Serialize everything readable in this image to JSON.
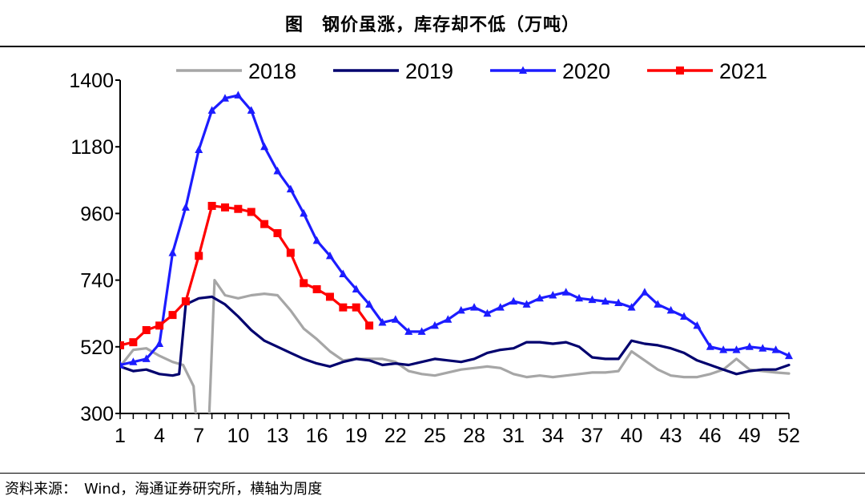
{
  "title": "图　钢价虽涨，库存却不低（万吨）",
  "source": "资料来源：　Wind，海通证券研究所，横轴为周度",
  "chart_data": {
    "type": "line",
    "title": "图　钢价虽涨，库存却不低（万吨）",
    "xlabel": "",
    "ylabel": "",
    "ylim": [
      300,
      1400
    ],
    "yticks": [
      300,
      520,
      740,
      960,
      1180,
      1400
    ],
    "xlim": [
      1,
      52
    ],
    "xticks": [
      1,
      4,
      7,
      10,
      13,
      16,
      19,
      22,
      25,
      28,
      31,
      34,
      37,
      40,
      43,
      46,
      49,
      52
    ],
    "legend_position": "top",
    "grid": false,
    "series": [
      {
        "name": "2018",
        "color": "#a6a6a6",
        "marker": "none",
        "x": [
          1,
          2,
          3,
          4,
          5,
          5.8,
          6.6,
          6.9,
          7.3,
          7.8,
          8.2,
          9,
          10,
          11,
          12,
          13,
          14,
          15,
          16,
          17,
          18,
          19,
          20,
          21,
          22,
          23,
          24,
          25,
          26,
          27,
          28,
          29,
          30,
          31,
          32,
          33,
          34,
          35,
          36,
          37,
          38,
          39,
          40,
          41,
          42,
          43,
          44,
          45,
          46,
          47,
          48,
          49,
          50,
          51,
          52
        ],
        "y": [
          455,
          510,
          515,
          490,
          470,
          460,
          390,
          220,
          200,
          300,
          740,
          690,
          680,
          690,
          695,
          690,
          640,
          580,
          545,
          505,
          475,
          480,
          480,
          480,
          470,
          440,
          430,
          425,
          435,
          445,
          450,
          455,
          450,
          430,
          420,
          425,
          420,
          425,
          430,
          435,
          435,
          440,
          505,
          475,
          445,
          425,
          420,
          420,
          430,
          445,
          480,
          445,
          440,
          435,
          432
        ]
      },
      {
        "name": "2019",
        "color": "#00006e",
        "marker": "none",
        "x": [
          1,
          2,
          3,
          4,
          5,
          5.5,
          6,
          7,
          8,
          9,
          10,
          11,
          12,
          13,
          14,
          15,
          16,
          17,
          18,
          19,
          20,
          21,
          22,
          23,
          24,
          25,
          26,
          27,
          28,
          29,
          30,
          31,
          32,
          33,
          34,
          35,
          36,
          37,
          38,
          39,
          40,
          41,
          42,
          43,
          44,
          45,
          46,
          47,
          48,
          49,
          50,
          51,
          52
        ],
        "y": [
          455,
          440,
          445,
          430,
          425,
          430,
          660,
          680,
          685,
          660,
          620,
          575,
          540,
          520,
          500,
          480,
          465,
          455,
          470,
          480,
          475,
          460,
          465,
          460,
          470,
          480,
          475,
          470,
          480,
          500,
          510,
          515,
          535,
          535,
          530,
          535,
          520,
          485,
          480,
          480,
          540,
          530,
          525,
          515,
          500,
          475,
          460,
          445,
          430,
          440,
          445,
          445,
          460
        ]
      },
      {
        "name": "2020",
        "color": "#1c1cff",
        "marker": "triangle",
        "x": [
          1,
          2,
          3,
          4,
          5,
          6,
          7,
          8,
          9,
          10,
          11,
          12,
          13,
          14,
          15,
          16,
          17,
          18,
          19,
          20,
          21,
          22,
          23,
          24,
          25,
          26,
          27,
          28,
          29,
          30,
          31,
          32,
          33,
          34,
          35,
          36,
          37,
          38,
          39,
          40,
          41,
          42,
          43,
          44,
          45,
          46,
          47,
          48,
          49,
          50,
          51,
          52
        ],
        "y": [
          460,
          470,
          480,
          530,
          830,
          980,
          1170,
          1300,
          1340,
          1350,
          1300,
          1180,
          1100,
          1040,
          960,
          870,
          820,
          760,
          710,
          660,
          600,
          610,
          570,
          570,
          590,
          610,
          640,
          650,
          630,
          650,
          670,
          660,
          680,
          690,
          700,
          680,
          675,
          670,
          665,
          650,
          700,
          660,
          640,
          620,
          590,
          520,
          510,
          510,
          520,
          515,
          510,
          490
        ]
      },
      {
        "name": "2021",
        "color": "#ff0000",
        "marker": "square",
        "x": [
          1,
          2,
          3,
          4,
          5,
          6,
          7,
          8,
          9,
          10,
          11,
          12,
          13,
          14,
          15,
          16,
          17,
          18,
          19,
          20
        ],
        "y": [
          525,
          535,
          575,
          590,
          625,
          670,
          820,
          985,
          980,
          975,
          965,
          925,
          895,
          830,
          730,
          710,
          685,
          650,
          650,
          590
        ]
      }
    ]
  }
}
